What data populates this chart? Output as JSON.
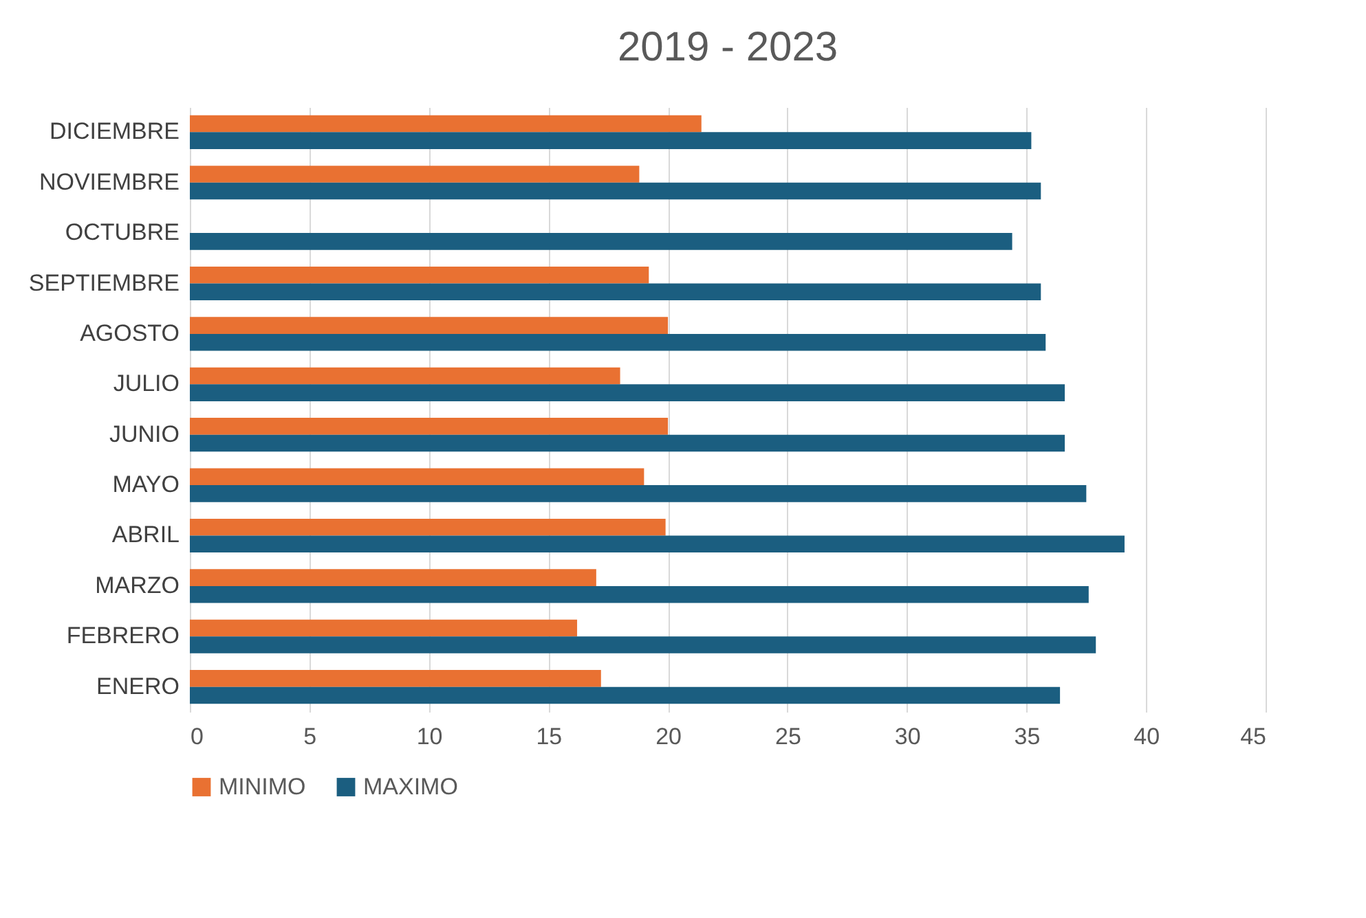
{
  "chart_data": {
    "type": "bar",
    "orientation": "horizontal",
    "title": "2019 - 2023",
    "categories": [
      "DICIEMBRE",
      "NOVIEMBRE",
      "OCTUBRE",
      "SEPTIEMBRE",
      "AGOSTO",
      "JULIO",
      "JUNIO",
      "MAYO",
      "ABRIL",
      "MARZO",
      "FEBRERO",
      "ENERO"
    ],
    "series": [
      {
        "name": "MINIMO",
        "color": "#e97132",
        "values": [
          21.4,
          18.8,
          null,
          19.2,
          20.0,
          18.0,
          20.0,
          19.0,
          19.9,
          17.0,
          16.2,
          17.2
        ]
      },
      {
        "name": "MAXIMO",
        "color": "#1b5e80",
        "values": [
          35.2,
          35.6,
          34.4,
          35.6,
          35.8,
          36.6,
          36.6,
          37.5,
          39.1,
          37.6,
          37.9,
          36.4
        ]
      }
    ],
    "xlim": [
      0,
      45
    ],
    "xticks": [
      0,
      5,
      10,
      15,
      20,
      25,
      30,
      35,
      40,
      45
    ],
    "grid": "x",
    "legend": "bottom"
  }
}
